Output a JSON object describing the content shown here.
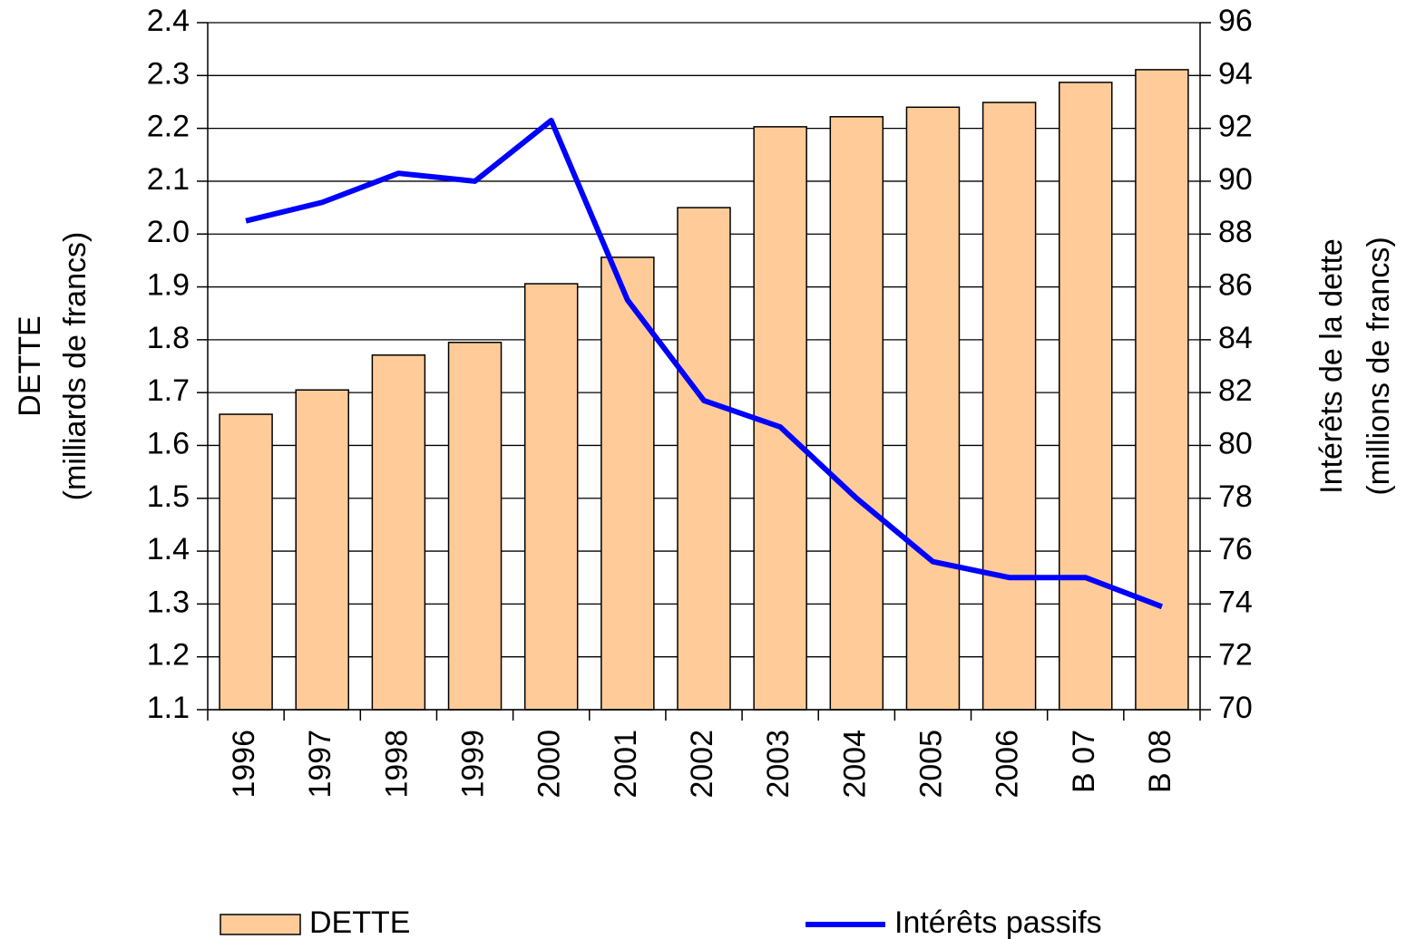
{
  "chart_data": {
    "type": "bar-line",
    "categories": [
      "1996",
      "1997",
      "1998",
      "1999",
      "2000",
      "2001",
      "2002",
      "2003",
      "2004",
      "2005",
      "2006",
      "B 07",
      "B 08"
    ],
    "series": [
      {
        "name": "DETTE",
        "type": "bar",
        "color": "#FFCC99",
        "values": [
          1.659,
          1.705,
          1.771,
          1.795,
          1.906,
          1.956,
          2.05,
          2.203,
          2.222,
          2.24,
          2.249,
          2.287,
          2.311
        ]
      },
      {
        "name": "Intérêts passifs",
        "type": "line",
        "axis": "y2",
        "color": "#0000FF",
        "values": [
          88.5,
          89.2,
          90.3,
          90.0,
          92.3,
          85.5,
          81.7,
          80.7,
          78.0,
          75.6,
          75.0,
          75.0,
          73.9
        ]
      }
    ],
    "ylabel": [
      "DETTE",
      "(milliards de francs)"
    ],
    "y2label": [
      "Intérêts de la dette",
      "(millions de francs)"
    ],
    "ylim": [
      1.1,
      2.4
    ],
    "yticks": [
      1.1,
      1.2,
      1.3,
      1.4,
      1.5,
      1.6,
      1.7,
      1.8,
      1.9,
      {
        "value": 2,
        "label": "2.0"
      },
      2.1,
      2.2,
      2.3,
      2.4
    ],
    "y2lim": [
      70,
      96
    ],
    "y2ticks": [
      70,
      72,
      74,
      76,
      78,
      80,
      82,
      84,
      86,
      88,
      90,
      92,
      94,
      96
    ],
    "grid": true,
    "legend": "bottom"
  }
}
